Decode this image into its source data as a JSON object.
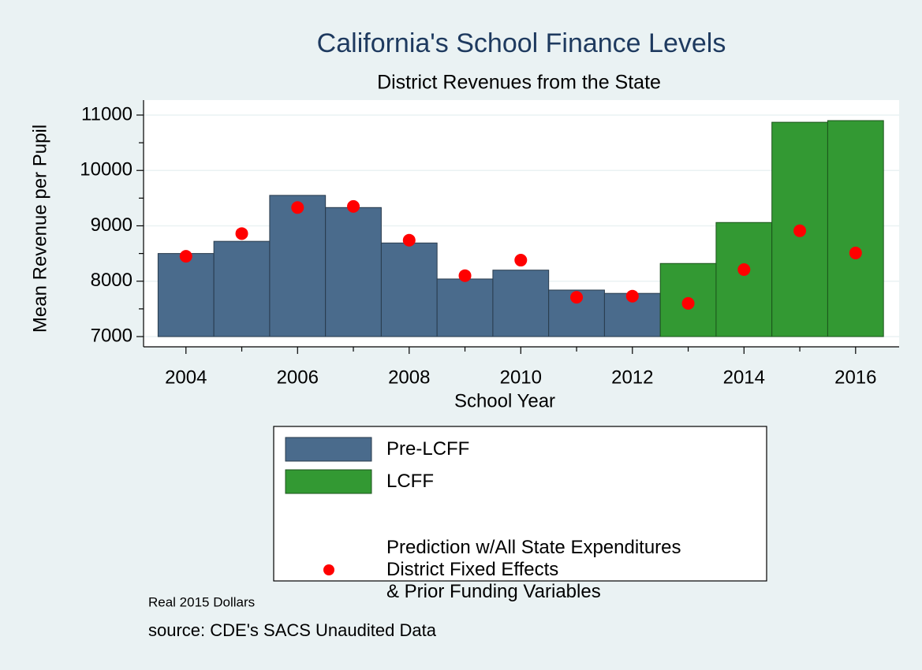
{
  "chart_data": {
    "type": "bar",
    "title": "California's School Finance Levels",
    "subtitle": "District Revenues from the State",
    "x_label": "School Year",
    "y_label": "Mean Revenue per Pupil",
    "notes": [
      "Real 2015 Dollars",
      "source: CDE's SACS Unaudited Data"
    ],
    "xlim": [
      2003.24,
      2016.78
    ],
    "xticks": [
      2004,
      2006,
      2008,
      2010,
      2012,
      2014,
      2016
    ],
    "xminorticks": [
      2005,
      2007,
      2009,
      2011,
      2013,
      2015
    ],
    "ylim": [
      6815,
      11270
    ],
    "yticks": [
      7000,
      8000,
      9000,
      10000,
      11000
    ],
    "yminorticks": [
      7500,
      8500,
      9500,
      10500
    ],
    "base": 7000,
    "grid": true,
    "series": [
      {
        "name": "Pre-LCFF",
        "type": "bar",
        "color": "#4a6b8c",
        "x": [
          2004,
          2005,
          2006,
          2007,
          2008,
          2009,
          2010,
          2011,
          2012
        ],
        "values": [
          8500,
          8720,
          9550,
          9330,
          8690,
          8040,
          8200,
          7840,
          7780
        ]
      },
      {
        "name": "LCFF",
        "type": "bar",
        "color": "#339933",
        "x": [
          2013,
          2014,
          2015,
          2016
        ],
        "values": [
          8320,
          9060,
          10870,
          10900
        ]
      },
      {
        "name": "Prediction w/All State Expenditures\nDistrict Fixed Effects\n& Prior Funding Variables",
        "type": "scatter",
        "color": "#ff0000",
        "x": [
          2004,
          2005,
          2006,
          2007,
          2008,
          2009,
          2010,
          2011,
          2012,
          2013,
          2014,
          2015,
          2016
        ],
        "values": [
          8450,
          8860,
          9330,
          9350,
          8740,
          8100,
          8380,
          7710,
          7730,
          7600,
          8210,
          8910,
          8510
        ]
      }
    ]
  }
}
